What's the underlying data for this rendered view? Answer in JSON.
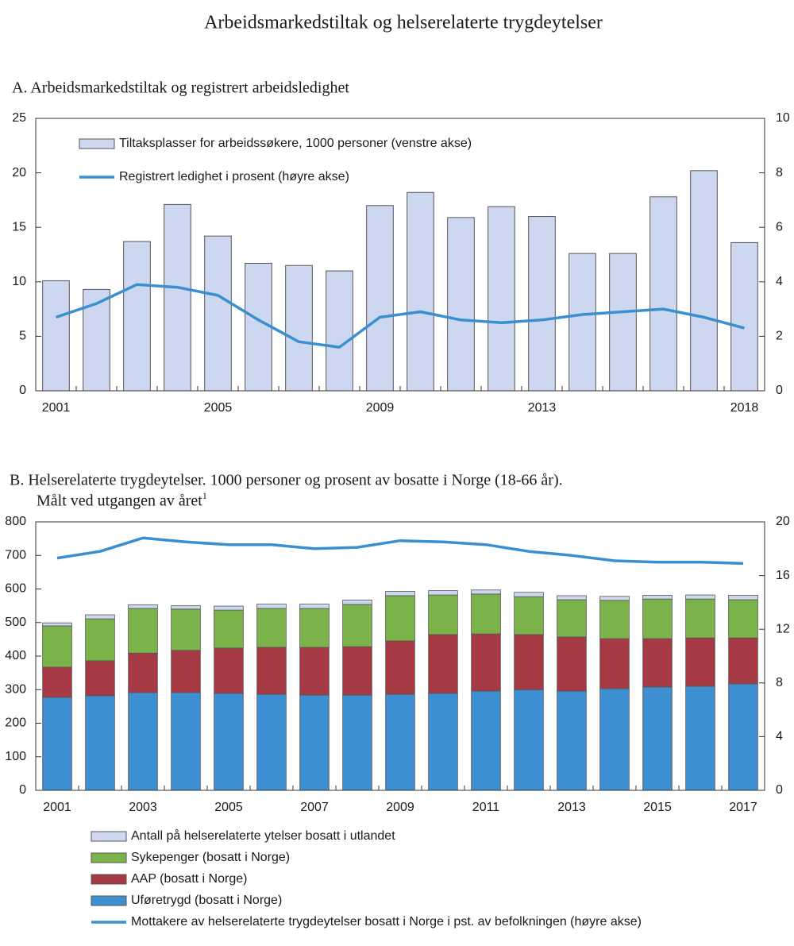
{
  "title": "Arbeidsmarkedstiltak og helserelaterte trygdeytelser",
  "chart_data": [
    {
      "type": "bar",
      "title": [
        "A.  Arbeidsmarkedstiltak og registrert arbeidsledighet"
      ],
      "categories": [
        "2001",
        null,
        null,
        null,
        "2005",
        null,
        null,
        null,
        "2009",
        null,
        null,
        null,
        "2013",
        null,
        null,
        null,
        null,
        "2018"
      ],
      "series": [
        {
          "name": "Tiltaksplasser for arbeidssøkere, 1000 personer (venstre akse)",
          "type": "bar",
          "color": "#cdd7ef",
          "values": [
            10.1,
            9.3,
            13.7,
            17.1,
            14.2,
            11.7,
            11.5,
            11.0,
            17.0,
            18.2,
            15.9,
            16.9,
            16.0,
            12.6,
            12.6,
            17.8,
            20.2,
            13.6
          ]
        },
        {
          "name": "Registrert ledighet i prosent (høyre akse)",
          "type": "line",
          "color": "#3a8fd0",
          "axis": "y2",
          "values": [
            2.7,
            3.2,
            3.9,
            3.8,
            3.5,
            2.6,
            1.8,
            1.6,
            2.7,
            2.9,
            2.6,
            2.5,
            2.6,
            2.8,
            2.9,
            3.0,
            2.7,
            2.3
          ]
        }
      ],
      "ylim": [
        0,
        25
      ],
      "yticks": [
        0,
        5,
        10,
        15,
        20,
        25
      ],
      "y2lim": [
        0,
        10
      ],
      "y2ticks": [
        0,
        2,
        4,
        6,
        8,
        10
      ],
      "legend": "upper left"
    },
    {
      "type": "stacked_bar",
      "title": [
        "B.  Helserelaterte trygdeytelser. 1000 personer og prosent av bosatte i Norge (18-66 år).",
        "Målt ved utgangen av året"
      ],
      "title_note": "1",
      "categories": [
        "2001",
        null,
        "2003",
        null,
        "2005",
        null,
        "2007",
        null,
        "2009",
        null,
        "2011",
        null,
        "2013",
        null,
        "2015",
        null,
        "2017"
      ],
      "series": [
        {
          "name": "Uføretrygd (bosatt i Norge)",
          "type": "bar",
          "color": "#3d8fd1",
          "values": [
            277,
            282,
            291,
            291,
            289,
            286,
            284,
            284,
            286,
            289,
            296,
            300,
            296,
            303,
            308,
            310,
            317
          ]
        },
        {
          "name": "AAP (bosatt i Norge)",
          "type": "bar",
          "color": "#a63a44",
          "values": [
            90,
            104,
            118,
            126,
            135,
            140,
            142,
            144,
            159,
            175,
            170,
            164,
            161,
            149,
            144,
            144,
            137
          ]
        },
        {
          "name": "Sykepenger (bosatt i Norge)",
          "type": "bar",
          "color": "#7cb24a",
          "values": [
            123,
            125,
            133,
            123,
            113,
            116,
            116,
            126,
            135,
            118,
            119,
            113,
            111,
            114,
            118,
            116,
            114
          ]
        },
        {
          "name": "Antall på helserelaterte ytelser bosatt i utlandet",
          "type": "bar",
          "color": "#cdd7ef",
          "values": [
            9,
            12,
            11,
            10,
            12,
            13,
            13,
            13,
            13,
            13,
            12,
            13,
            12,
            12,
            11,
            12,
            13
          ]
        },
        {
          "name": "Mottakere av helserelaterte trygdeytelser bosatt i Norge i pst. av befolkningen (høyre akse)",
          "type": "line",
          "color": "#3a8fd0",
          "axis": "y2",
          "values": [
            17.3,
            17.8,
            18.8,
            18.5,
            18.3,
            18.3,
            18.0,
            18.1,
            18.6,
            18.5,
            18.3,
            17.8,
            17.5,
            17.1,
            17.0,
            17.0,
            16.9
          ]
        }
      ],
      "ylim": [
        0,
        800
      ],
      "yticks": [
        0,
        100,
        200,
        300,
        400,
        500,
        600,
        700,
        800
      ],
      "y2lim": [
        0,
        20
      ],
      "y2ticks": [
        0,
        4,
        8,
        12,
        16,
        20
      ],
      "legend": "below"
    }
  ]
}
